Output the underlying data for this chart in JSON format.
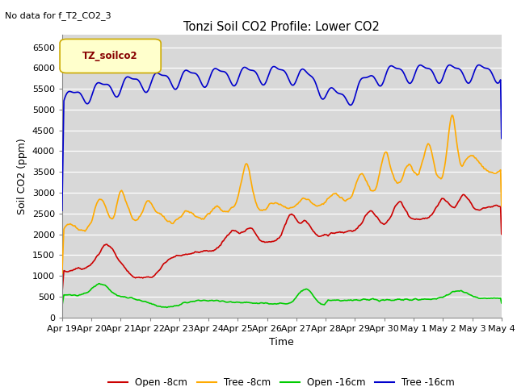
{
  "title": "Tonzi Soil CO2 Profile: Lower CO2",
  "no_data_text": "No data for f_T2_CO2_3",
  "xlabel": "Time",
  "ylabel": "Soil CO2 (ppm)",
  "ylim": [
    0,
    6800
  ],
  "yticks": [
    0,
    500,
    1000,
    1500,
    2000,
    2500,
    3000,
    3500,
    4000,
    4500,
    5000,
    5500,
    6000,
    6500
  ],
  "xtick_labels": [
    "Apr 19",
    "Apr 20",
    "Apr 21",
    "Apr 22",
    "Apr 23",
    "Apr 24",
    "Apr 25",
    "Apr 26",
    "Apr 27",
    "Apr 28",
    "Apr 29",
    "Apr 30",
    "May 1",
    "May 2",
    "May 3",
    "May 4"
  ],
  "legend_label": "TZ_soilco2",
  "legend_items": [
    "Open -8cm",
    "Tree -8cm",
    "Open -16cm",
    "Tree -16cm"
  ],
  "legend_colors": [
    "#cc0000",
    "#ffaa00",
    "#00cc00",
    "#0000cc"
  ],
  "fig_bg_color": "#ffffff",
  "plot_bg_color": "#d8d8d8",
  "line_colors": {
    "open_8": "#cc0000",
    "tree_8": "#ffaa00",
    "open_16": "#00cc00",
    "tree_16": "#0000cc"
  },
  "n_points": 480
}
